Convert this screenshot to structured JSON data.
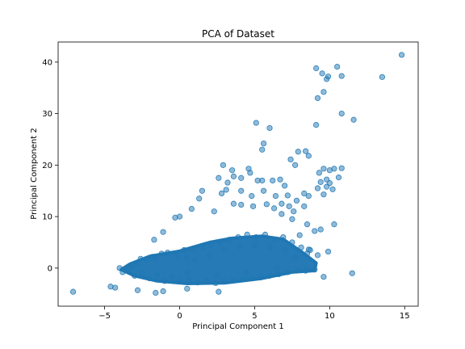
{
  "chart_data": {
    "type": "scatter",
    "title": "PCA of Dataset",
    "xlabel": "Principal Component 1",
    "ylabel": "Principal Component 2",
    "xlim": [
      -8.1,
      15.9
    ],
    "ylim": [
      -7.4,
      43.9
    ],
    "xticks": [
      -5,
      0,
      5,
      10,
      15
    ],
    "xtick_labels": [
      "−5",
      "0",
      "5",
      "10",
      "15"
    ],
    "yticks": [
      0,
      10,
      20,
      30,
      40
    ],
    "ytick_labels": [
      "0",
      "10",
      "20",
      "30",
      "40"
    ],
    "grid": false,
    "marker_color": "#1f77b4",
    "marker_alpha": 0.5,
    "dense_core_points": [
      [
        -3.5,
        -0.5
      ],
      [
        -3.2,
        0.3
      ],
      [
        -3.0,
        -1.5
      ],
      [
        -2.8,
        0.8
      ],
      [
        -2.5,
        -1.0
      ],
      [
        -2.2,
        1.5
      ],
      [
        -2.0,
        -2.0
      ],
      [
        -1.8,
        2.2
      ],
      [
        -1.5,
        -1.3
      ],
      [
        -1.2,
        2.8
      ],
      [
        -1.0,
        -2.5
      ],
      [
        -0.8,
        3.0
      ],
      [
        -0.5,
        -1.8
      ],
      [
        -0.2,
        2.5
      ],
      [
        0.0,
        -2.6
      ],
      [
        0.3,
        3.5
      ],
      [
        0.6,
        -2.2
      ],
      [
        0.9,
        3.3
      ],
      [
        1.2,
        -2.8
      ],
      [
        1.5,
        4.0
      ],
      [
        1.8,
        -2.5
      ],
      [
        2.1,
        4.5
      ],
      [
        2.4,
        -2.9
      ],
      [
        2.7,
        5.0
      ],
      [
        3.0,
        -2.6
      ],
      [
        3.3,
        5.5
      ],
      [
        3.6,
        -2.4
      ],
      [
        3.9,
        6.0
      ],
      [
        4.2,
        -2.2
      ],
      [
        4.5,
        6.5
      ],
      [
        4.8,
        -2.0
      ],
      [
        5.1,
        6.0
      ],
      [
        5.4,
        -1.8
      ],
      [
        5.7,
        6.5
      ],
      [
        6.0,
        -1.5
      ],
      [
        6.3,
        5.5
      ],
      [
        6.6,
        -1.2
      ],
      [
        6.9,
        6.0
      ],
      [
        7.2,
        -0.8
      ],
      [
        7.5,
        5.0
      ],
      [
        7.8,
        -0.5
      ],
      [
        8.1,
        4.0
      ],
      [
        8.4,
        -0.5
      ],
      [
        8.7,
        3.5
      ],
      [
        9.0,
        -0.3
      ],
      [
        9.2,
        2.5
      ],
      [
        -4.0,
        0.0
      ],
      [
        -3.8,
        -0.8
      ],
      [
        -2.6,
        1.8
      ],
      [
        -1.6,
        1.9
      ],
      [
        0.5,
        2.0
      ],
      [
        1.0,
        1.5
      ],
      [
        2.0,
        2.5
      ],
      [
        3.0,
        3.5
      ],
      [
        4.0,
        4.2
      ],
      [
        5.0,
        4.5
      ],
      [
        6.0,
        4.0
      ],
      [
        7.0,
        3.5
      ],
      [
        0.5,
        -1.0
      ],
      [
        2.5,
        -1.5
      ],
      [
        4.5,
        -1.0
      ],
      [
        6.5,
        0.0
      ]
    ],
    "outliers": [
      [
        -7.1,
        -4.6
      ],
      [
        -4.6,
        -3.6
      ],
      [
        -4.3,
        -3.8
      ],
      [
        -2.8,
        -4.3
      ],
      [
        -1.6,
        -4.8
      ],
      [
        -1.1,
        -4.5
      ],
      [
        0.5,
        -4.0
      ],
      [
        2.6,
        -4.6
      ],
      [
        9.6,
        -1.7
      ],
      [
        11.5,
        -1.0
      ],
      [
        9.9,
        3.2
      ],
      [
        8.6,
        3.6
      ],
      [
        8.5,
        2.8
      ],
      [
        7.7,
        2.0
      ],
      [
        8.0,
        6.4
      ],
      [
        9.4,
        7.5
      ],
      [
        8.5,
        8.5
      ],
      [
        9.0,
        7.2
      ],
      [
        10.3,
        8.5
      ],
      [
        7.5,
        9.5
      ],
      [
        6.8,
        10.5
      ],
      [
        7.6,
        11.0
      ],
      [
        8.3,
        12.0
      ],
      [
        6.8,
        12.5
      ],
      [
        7.8,
        13.1
      ],
      [
        8.6,
        14.0
      ],
      [
        9.6,
        14.3
      ],
      [
        8.3,
        14.5
      ],
      [
        10.2,
        15.3
      ],
      [
        9.2,
        15.5
      ],
      [
        9.8,
        15.8
      ],
      [
        10.0,
        16.5
      ],
      [
        7.0,
        16.0
      ],
      [
        9.4,
        16.7
      ],
      [
        6.4,
        14.0
      ],
      [
        7.2,
        14.1
      ],
      [
        9.8,
        17.2
      ],
      [
        10.6,
        17.6
      ],
      [
        9.3,
        18.5
      ],
      [
        10.0,
        19.0
      ],
      [
        9.6,
        19.3
      ],
      [
        10.3,
        19.3
      ],
      [
        10.8,
        19.4
      ],
      [
        6.7,
        17.2
      ],
      [
        7.7,
        20.0
      ],
      [
        7.4,
        21.1
      ],
      [
        7.9,
        22.6
      ],
      [
        8.4,
        22.7
      ],
      [
        8.6,
        21.8
      ],
      [
        6.2,
        17.0
      ],
      [
        5.5,
        17.0
      ],
      [
        4.1,
        17.5
      ],
      [
        4.7,
        18.5
      ],
      [
        3.6,
        17.8
      ],
      [
        4.6,
        19.3
      ],
      [
        2.6,
        17.5
      ],
      [
        3.5,
        19.0
      ],
      [
        2.9,
        20.0
      ],
      [
        1.5,
        15.0
      ],
      [
        1.3,
        13.5
      ],
      [
        3.1,
        15.2
      ],
      [
        3.2,
        16.6
      ],
      [
        5.2,
        17.0
      ],
      [
        4.1,
        15.0
      ],
      [
        5.6,
        15.0
      ],
      [
        4.8,
        14.0
      ],
      [
        2.3,
        11.0
      ],
      [
        0.8,
        11.5
      ],
      [
        0.0,
        10.0
      ],
      [
        -0.3,
        9.8
      ],
      [
        -1.7,
        5.5
      ],
      [
        -1.1,
        7.0
      ],
      [
        3.6,
        12.5
      ],
      [
        4.9,
        12.0
      ],
      [
        6.3,
        11.6
      ],
      [
        7.3,
        12.0
      ],
      [
        2.8,
        14.5
      ],
      [
        4.1,
        12.3
      ],
      [
        5.8,
        12.4
      ],
      [
        5.5,
        23.0
      ],
      [
        5.1,
        28.2
      ],
      [
        6.0,
        27.2
      ],
      [
        5.6,
        24.2
      ],
      [
        9.1,
        27.8
      ],
      [
        11.6,
        28.8
      ],
      [
        10.8,
        30.0
      ],
      [
        9.2,
        33.0
      ],
      [
        9.6,
        34.2
      ],
      [
        9.8,
        36.7
      ],
      [
        9.9,
        37.2
      ],
      [
        9.5,
        37.8
      ],
      [
        9.1,
        38.8
      ],
      [
        10.8,
        37.3
      ],
      [
        10.5,
        39.1
      ],
      [
        13.5,
        37.1
      ],
      [
        14.8,
        41.4
      ]
    ]
  }
}
